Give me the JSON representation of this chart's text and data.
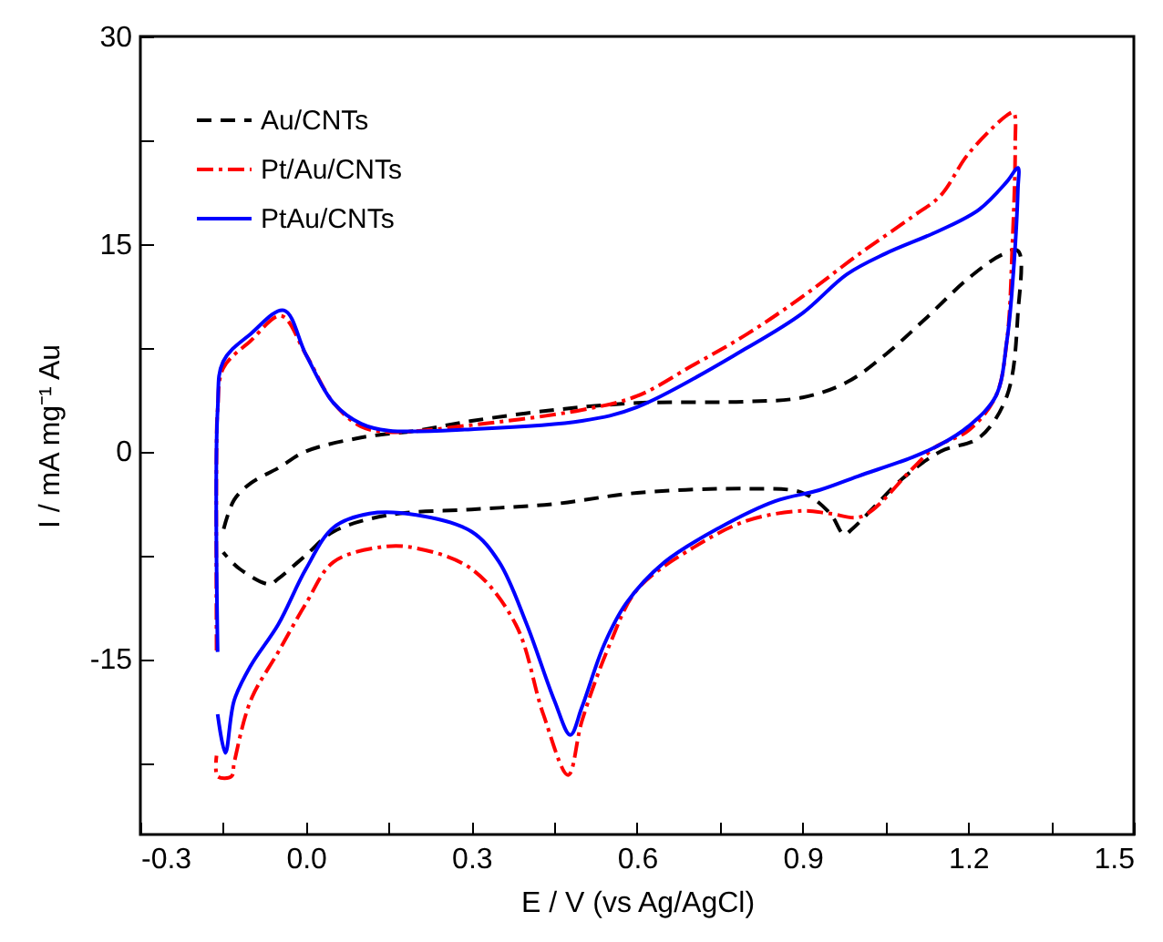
{
  "chart_data": {
    "type": "line",
    "xlabel": "E / V (vs Ag/AgCl)",
    "ylabel": "I / mA mg⁻¹ Au",
    "xlim": [
      -0.3,
      1.5
    ],
    "ylim": [
      -27.7,
      30
    ],
    "xticks": [
      {
        "value": -0.3,
        "label": "-0.3"
      },
      {
        "value": -0.15,
        "label": null
      },
      {
        "value": 0,
        "label": "0.0"
      },
      {
        "value": 0.15,
        "label": null
      },
      {
        "value": 0.3,
        "label": "0.3"
      },
      {
        "value": 0.45,
        "label": null
      },
      {
        "value": 0.6,
        "label": "0.6"
      },
      {
        "value": 0.75,
        "label": null
      },
      {
        "value": 0.9,
        "label": "0.9"
      },
      {
        "value": 1.05,
        "label": null
      },
      {
        "value": 1.2,
        "label": "1.2"
      },
      {
        "value": 1.35,
        "label": null
      },
      {
        "value": 1.5,
        "label": "1.5"
      }
    ],
    "yticks": [
      {
        "value": -22.5,
        "label": null
      },
      {
        "value": -15,
        "label": "-15"
      },
      {
        "value": -7.5,
        "label": null
      },
      {
        "value": 0,
        "label": "0"
      },
      {
        "value": 7.5,
        "label": null
      },
      {
        "value": 15,
        "label": "15"
      },
      {
        "value": 22.5,
        "label": null
      },
      {
        "value": 30,
        "label": "30"
      }
    ],
    "grid": false,
    "legend": "top left",
    "marker": "none",
    "series": [
      {
        "name": "Au/CNTs",
        "color": "#000000",
        "line_style": "dashed",
        "x": [
          -0.149,
          -0.13,
          -0.1,
          -0.05,
          0.0,
          0.1,
          0.2,
          0.3,
          0.45,
          0.6,
          0.8,
          0.9,
          0.98,
          1.05,
          1.12,
          1.2,
          1.26,
          1.29,
          1.29,
          1.27,
          1.22,
          1.15,
          1.08,
          1.03,
          0.99,
          0.975,
          0.95,
          0.9,
          0.8,
          0.6,
          0.45,
          0.3,
          0.15,
          0.05,
          0.0,
          -0.05,
          -0.066,
          -0.12,
          -0.15
        ],
        "values": [
          -5.6,
          -3.5,
          -2.3,
          -1.2,
          0,
          1,
          1.5,
          2.2,
          3.0,
          3.5,
          3.6,
          3.9,
          5,
          7,
          9.5,
          12.5,
          14.2,
          14.5,
          10,
          4,
          1,
          0,
          -2,
          -4,
          -5.6,
          -6.0,
          -4.5,
          -3.0,
          -2.7,
          -3.0,
          -3.8,
          -4.2,
          -4.6,
          -5.8,
          -7.5,
          -9.2,
          -9.6,
          -8.5,
          -7.3
        ]
      },
      {
        "name": "Pt/Au/CNTs",
        "color": "#ff0000",
        "line_style": "dashdot",
        "x": [
          -0.162,
          -0.162,
          -0.16,
          -0.15,
          -0.1,
          -0.045,
          0.0,
          0.05,
          0.1,
          0.15,
          0.3,
          0.5,
          0.6,
          0.7,
          0.8,
          0.9,
          1.0,
          1.1,
          1.15,
          1.2,
          1.27,
          1.282,
          1.285,
          1.28,
          1.27,
          1.25,
          1.2,
          1.14,
          1.1,
          1.007,
          0.95,
          0.9,
          0.8,
          0.7,
          0.6,
          0.55,
          0.5,
          0.475,
          0.43,
          0.38,
          0.3,
          0.2,
          0.139,
          0.05,
          0.0,
          -0.05,
          -0.1,
          -0.13,
          -0.135,
          -0.16,
          -0.162
        ],
        "values": [
          -14.4,
          0,
          3,
          6,
          8,
          9.8,
          7,
          3.5,
          1.8,
          1.4,
          1.9,
          3,
          4,
          6.2,
          8.5,
          11.2,
          14.2,
          17,
          18.5,
          21.5,
          24.3,
          24.5,
          22,
          15,
          8,
          4,
          1.5,
          0.3,
          -1.2,
          -4.7,
          -4.5,
          -4.3,
          -5,
          -7,
          -10,
          -14,
          -19.5,
          -23.4,
          -19,
          -12.5,
          -8.5,
          -7,
          -6.9,
          -8,
          -11,
          -14.5,
          -18,
          -22.5,
          -23.5,
          -23.5,
          -22
        ]
      },
      {
        "name": "PtAu/CNTs",
        "color": "#0000ff",
        "line_style": "solid",
        "x": [
          -0.16,
          -0.16,
          -0.15,
          -0.1,
          -0.04,
          0.0,
          0.05,
          0.1,
          0.15,
          0.3,
          0.5,
          0.6,
          0.8,
          0.9,
          0.98,
          1.05,
          1.15,
          1.22,
          1.27,
          1.29,
          1.29,
          1.28,
          1.27,
          1.25,
          1.2,
          1.15,
          1.1,
          1.0,
          0.93,
          0.85,
          0.75,
          0.65,
          0.58,
          0.54,
          0.5,
          0.479,
          0.45,
          0.4,
          0.35,
          0.3,
          0.2,
          0.115,
          0.05,
          0.0,
          -0.05,
          -0.1,
          -0.13,
          -0.146,
          -0.16
        ],
        "values": [
          -14.5,
          3,
          6.5,
          8.5,
          10.2,
          7,
          3.5,
          2,
          1.5,
          1.6,
          2.2,
          3.2,
          7.5,
          10,
          12.8,
          14.3,
          16,
          17.5,
          19.5,
          20.5,
          19,
          12,
          8,
          4,
          1.8,
          0.5,
          -0.4,
          -1.8,
          -2.8,
          -3.6,
          -5.5,
          -8,
          -11,
          -14,
          -18.5,
          -20.5,
          -18,
          -12.5,
          -8,
          -5.8,
          -4.6,
          -4.5,
          -5.5,
          -8.5,
          -12.5,
          -15.5,
          -18,
          -21.8,
          -19
        ]
      }
    ]
  }
}
